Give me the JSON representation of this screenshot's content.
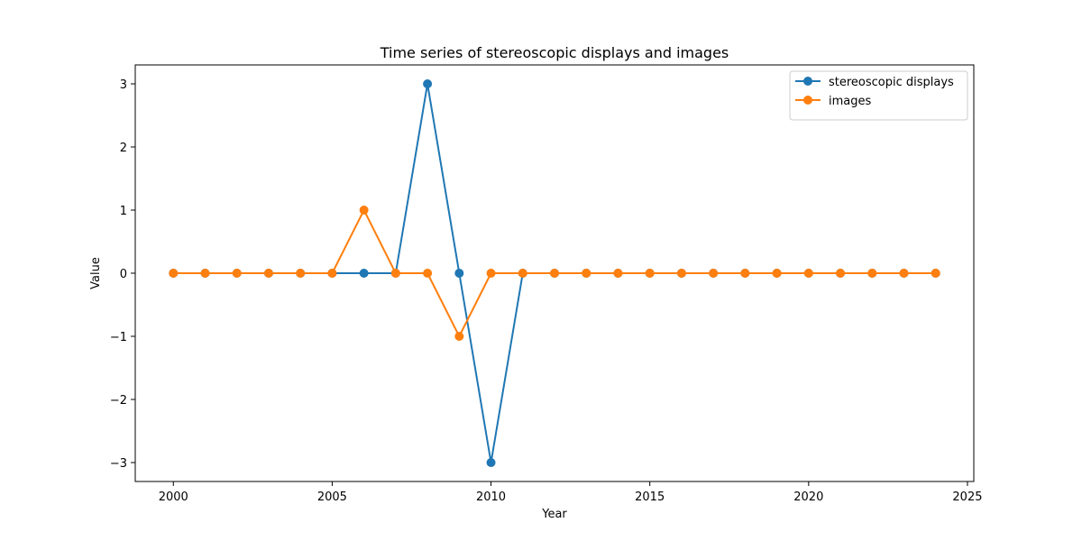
{
  "chart_data": {
    "type": "line",
    "title": "Time series of stereoscopic displays and images",
    "xlabel": "Year",
    "ylabel": "Value",
    "x": [
      2000,
      2001,
      2002,
      2003,
      2004,
      2005,
      2006,
      2007,
      2008,
      2009,
      2010,
      2011,
      2012,
      2013,
      2014,
      2015,
      2016,
      2017,
      2018,
      2019,
      2020,
      2021,
      2022,
      2023,
      2024
    ],
    "xlim": [
      1998.8,
      2025.2
    ],
    "ylim": [
      -3.3,
      3.3
    ],
    "xticks": [
      2000,
      2005,
      2010,
      2015,
      2020,
      2025
    ],
    "yticks": [
      -3,
      -2,
      -1,
      0,
      1,
      2,
      3
    ],
    "ytick_labels": [
      "−3",
      "−2",
      "−1",
      "0",
      "1",
      "2",
      "3"
    ],
    "grid": false,
    "legend_position": "top-right",
    "series": [
      {
        "name": "stereoscopic displays",
        "color": "#1f77b4",
        "marker": "circle",
        "values": [
          0,
          0,
          0,
          0,
          0,
          0,
          0,
          0,
          3,
          0,
          -3,
          0,
          0,
          0,
          0,
          0,
          0,
          0,
          0,
          0,
          0,
          0,
          0,
          0,
          0
        ]
      },
      {
        "name": "images",
        "color": "#ff7f0e",
        "marker": "circle",
        "values": [
          0,
          0,
          0,
          0,
          0,
          0,
          1,
          0,
          0,
          -1,
          0,
          0,
          0,
          0,
          0,
          0,
          0,
          0,
          0,
          0,
          0,
          0,
          0,
          0,
          0
        ]
      }
    ]
  }
}
